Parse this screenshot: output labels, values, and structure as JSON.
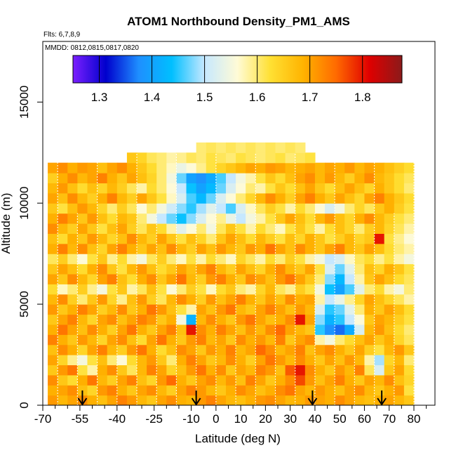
{
  "chart_data": {
    "type": "heatmap",
    "title": "ATOM1 Northbound Density_PM1_AMS",
    "subtitle_flights": "Flts: 6,7,8,9",
    "subtitle_dates": "MMDD: 0812,0815,0817,0820",
    "xlabel": "Latitude (deg N)",
    "ylabel": "Altitude (m)",
    "xlim": [
      -70,
      85
    ],
    "ylim": [
      0,
      18000
    ],
    "x_ticks": [
      -70,
      -55,
      -40,
      -25,
      -10,
      0,
      10,
      20,
      30,
      40,
      50,
      60,
      70,
      80
    ],
    "x_tick_labels": [
      "-70",
      "-55",
      "-40",
      "-25",
      "-10",
      "0",
      "10",
      "20",
      "30",
      "40",
      "50",
      "60",
      "70",
      "80"
    ],
    "x_minor_ticks": [
      -65,
      -60,
      -50,
      -45,
      -35,
      -30,
      -20,
      -15,
      -5,
      5,
      15,
      25,
      35,
      45,
      55,
      65,
      75,
      85
    ],
    "y_ticks": [
      0,
      5000,
      10000,
      15000
    ],
    "y_tick_labels": [
      "0",
      "5000",
      "10000",
      "15000"
    ],
    "colorbar": {
      "min": 1.25,
      "max": 1.875,
      "ticks": [
        1.3,
        1.4,
        1.5,
        1.6,
        1.7,
        1.8
      ],
      "tick_labels": [
        "1.3",
        "1.4",
        "1.5",
        "1.6",
        "1.7",
        "1.8"
      ],
      "colors": [
        "#7b1fff",
        "#0000cd",
        "#1e8fff",
        "#00bfff",
        "#c6e8ff",
        "#fffbd6",
        "#ffe033",
        "#ffb300",
        "#ff6a00",
        "#e00000",
        "#8b1a1a"
      ]
    },
    "layer_bottom_altitudes": [
      0,
      500,
      1000,
      1500,
      2000,
      2500,
      3000,
      3500,
      4000,
      4500,
      5000,
      5500,
      6000,
      6500,
      7000,
      7500,
      8000,
      8500,
      9000,
      9500,
      10000,
      10500,
      11000,
      11500,
      12000,
      12500
    ],
    "layer_thickness_m": 500,
    "column_latitudes": [
      -66,
      -62,
      -58,
      -54,
      -50,
      -46,
      -42,
      -38,
      -34,
      -30,
      -26,
      -22,
      -18,
      -14,
      -10,
      -6,
      -2,
      2,
      6,
      10,
      14,
      18,
      22,
      26,
      30,
      34,
      38,
      42,
      46,
      50,
      54,
      58,
      62,
      66,
      70,
      74,
      78
    ],
    "column_width_deg": 4,
    "density_grid": [
      [
        1.71,
        1.68,
        1.7,
        1.72,
        1.69,
        1.67,
        1.7,
        1.73,
        1.71,
        1.68,
        1.66,
        1.7,
        1.72,
        1.69,
        1.68,
        1.71,
        1.73,
        1.7,
        1.68,
        1.67,
        1.69,
        1.71,
        1.72,
        1.7,
        1.68,
        1.69,
        1.71,
        1.7,
        1.69,
        1.72,
        1.7,
        1.68,
        1.67,
        1.69,
        1.7,
        1.68,
        1.66
      ],
      [
        1.69,
        1.7,
        1.72,
        1.67,
        1.64,
        1.71,
        1.73,
        1.69,
        1.66,
        1.7,
        1.72,
        1.68,
        1.65,
        1.7,
        1.73,
        1.71,
        1.68,
        1.66,
        1.69,
        1.72,
        1.7,
        1.67,
        1.69,
        1.72,
        1.74,
        1.7,
        1.68,
        1.71,
        1.69,
        1.67,
        1.7,
        1.72,
        1.68,
        1.66,
        1.69,
        1.71,
        1.62
      ],
      [
        1.72,
        1.66,
        1.63,
        1.69,
        1.74,
        1.68,
        1.65,
        1.7,
        1.73,
        1.67,
        1.64,
        1.71,
        1.75,
        1.69,
        1.66,
        1.7,
        1.72,
        1.68,
        1.71,
        1.67,
        1.73,
        1.7,
        1.66,
        1.69,
        1.72,
        1.77,
        1.71,
        1.67,
        1.7,
        1.73,
        1.69,
        1.66,
        1.7,
        1.68,
        1.72,
        1.67,
        1.64
      ],
      [
        1.66,
        1.71,
        1.74,
        1.62,
        1.58,
        1.69,
        1.72,
        1.66,
        1.61,
        1.68,
        1.73,
        1.7,
        1.64,
        1.67,
        1.71,
        1.74,
        1.69,
        1.72,
        1.66,
        1.7,
        1.68,
        1.73,
        1.71,
        1.67,
        1.76,
        1.8,
        1.72,
        1.69,
        1.66,
        1.71,
        1.68,
        1.73,
        1.61,
        1.52,
        1.66,
        1.7,
        1.63
      ],
      [
        1.7,
        1.64,
        1.59,
        1.55,
        1.62,
        1.67,
        1.6,
        1.56,
        1.63,
        1.68,
        1.71,
        1.66,
        1.6,
        1.69,
        1.73,
        1.7,
        1.66,
        1.68,
        1.72,
        1.69,
        1.65,
        1.7,
        1.74,
        1.71,
        1.68,
        1.72,
        1.69,
        1.66,
        1.7,
        1.67,
        1.71,
        1.68,
        1.58,
        1.49,
        1.64,
        1.68,
        1.6
      ],
      [
        1.67,
        1.72,
        1.69,
        1.64,
        1.7,
        1.73,
        1.68,
        1.65,
        1.71,
        1.74,
        1.69,
        1.63,
        1.67,
        1.72,
        1.7,
        1.66,
        1.71,
        1.69,
        1.73,
        1.68,
        1.7,
        1.75,
        1.72,
        1.68,
        1.7,
        1.73,
        1.67,
        1.7,
        1.72,
        1.69,
        1.66,
        1.7,
        1.65,
        1.62,
        1.68,
        1.71,
        1.66
      ],
      [
        1.73,
        1.69,
        1.66,
        1.71,
        1.68,
        1.64,
        1.7,
        1.72,
        1.67,
        1.63,
        1.7,
        1.74,
        1.69,
        1.66,
        1.71,
        1.73,
        1.68,
        1.7,
        1.66,
        1.72,
        1.69,
        1.71,
        1.68,
        1.73,
        1.66,
        1.7,
        1.72,
        1.58,
        1.55,
        1.6,
        1.63,
        1.67,
        1.7,
        1.66,
        1.69,
        1.64,
        1.61
      ],
      [
        1.69,
        1.74,
        1.7,
        1.67,
        1.72,
        1.69,
        1.65,
        1.7,
        1.74,
        1.69,
        1.66,
        1.7,
        1.73,
        1.67,
        1.8,
        1.72,
        1.69,
        1.73,
        1.7,
        1.67,
        1.71,
        1.68,
        1.72,
        1.75,
        1.7,
        1.68,
        1.66,
        1.45,
        1.38,
        1.36,
        1.41,
        1.52,
        1.68,
        1.71,
        1.67,
        1.63,
        1.6
      ],
      [
        1.66,
        1.7,
        1.73,
        1.68,
        1.64,
        1.7,
        1.72,
        1.67,
        1.7,
        1.73,
        1.71,
        1.66,
        1.69,
        1.55,
        1.42,
        1.68,
        1.72,
        1.69,
        1.66,
        1.71,
        1.74,
        1.7,
        1.67,
        1.69,
        1.72,
        1.8,
        1.7,
        1.48,
        1.42,
        1.45,
        1.5,
        1.56,
        1.66,
        1.7,
        1.68,
        1.65,
        1.62
      ],
      [
        1.71,
        1.66,
        1.69,
        1.73,
        1.7,
        1.65,
        1.68,
        1.72,
        1.66,
        1.69,
        1.74,
        1.71,
        1.67,
        1.62,
        1.58,
        1.7,
        1.67,
        1.71,
        1.74,
        1.68,
        1.66,
        1.7,
        1.73,
        1.7,
        1.67,
        1.71,
        1.68,
        1.52,
        1.45,
        1.47,
        1.53,
        1.6,
        1.69,
        1.66,
        1.7,
        1.67,
        1.63
      ],
      [
        1.68,
        1.72,
        1.65,
        1.6,
        1.66,
        1.71,
        1.64,
        1.59,
        1.67,
        1.71,
        1.65,
        1.61,
        1.68,
        1.72,
        1.69,
        1.65,
        1.71,
        1.67,
        1.7,
        1.73,
        1.69,
        1.66,
        1.7,
        1.67,
        1.72,
        1.69,
        1.7,
        1.58,
        1.5,
        1.54,
        1.59,
        1.64,
        1.7,
        1.67,
        1.64,
        1.61,
        1.58
      ],
      [
        1.63,
        1.57,
        1.6,
        1.65,
        1.59,
        1.55,
        1.62,
        1.66,
        1.58,
        1.61,
        1.67,
        1.62,
        1.56,
        1.6,
        1.65,
        1.62,
        1.57,
        1.63,
        1.66,
        1.6,
        1.58,
        1.64,
        1.68,
        1.61,
        1.59,
        1.65,
        1.62,
        1.55,
        1.44,
        1.4,
        1.46,
        1.53,
        1.6,
        1.63,
        1.58,
        1.55,
        1.6
      ],
      [
        1.7,
        1.66,
        1.72,
        1.68,
        1.64,
        1.7,
        1.73,
        1.67,
        1.63,
        1.69,
        1.72,
        1.66,
        1.7,
        1.74,
        1.68,
        1.65,
        1.71,
        1.73,
        1.69,
        1.66,
        1.72,
        1.7,
        1.67,
        1.71,
        1.74,
        1.7,
        1.66,
        1.6,
        1.48,
        1.43,
        1.5,
        1.58,
        1.66,
        1.7,
        1.67,
        1.63,
        1.61
      ],
      [
        1.66,
        1.7,
        1.67,
        1.63,
        1.69,
        1.72,
        1.66,
        1.62,
        1.68,
        1.71,
        1.67,
        1.63,
        1.66,
        1.7,
        1.67,
        1.7,
        1.73,
        1.68,
        1.65,
        1.7,
        1.67,
        1.64,
        1.69,
        1.72,
        1.68,
        1.66,
        1.7,
        1.62,
        1.52,
        1.47,
        1.53,
        1.6,
        1.67,
        1.64,
        1.69,
        1.66,
        1.62
      ],
      [
        1.61,
        1.65,
        1.6,
        1.56,
        1.62,
        1.66,
        1.59,
        1.63,
        1.58,
        1.55,
        1.61,
        1.65,
        1.6,
        1.57,
        1.62,
        1.58,
        1.63,
        1.6,
        1.57,
        1.64,
        1.61,
        1.58,
        1.63,
        1.6,
        1.65,
        1.62,
        1.58,
        1.55,
        1.5,
        1.52,
        1.57,
        1.61,
        1.63,
        1.59,
        1.62,
        1.58,
        1.55
      ],
      [
        1.69,
        1.73,
        1.68,
        1.72,
        1.67,
        1.64,
        1.7,
        1.73,
        1.69,
        1.66,
        1.7,
        1.67,
        1.72,
        1.68,
        1.65,
        1.7,
        1.67,
        1.71,
        1.68,
        1.66,
        1.71,
        1.69,
        1.74,
        1.7,
        1.67,
        1.72,
        1.69,
        1.66,
        1.7,
        1.73,
        1.68,
        1.66,
        1.7,
        1.67,
        1.63,
        1.6,
        1.58
      ],
      [
        1.67,
        1.63,
        1.69,
        1.66,
        1.71,
        1.68,
        1.64,
        1.67,
        1.72,
        1.68,
        1.65,
        1.7,
        1.66,
        1.62,
        1.67,
        1.64,
        1.6,
        1.66,
        1.7,
        1.67,
        1.63,
        1.68,
        1.65,
        1.62,
        1.67,
        1.64,
        1.69,
        1.66,
        1.62,
        1.65,
        1.68,
        1.64,
        1.66,
        1.8,
        1.62,
        1.59,
        1.56
      ],
      [
        1.72,
        1.68,
        1.65,
        1.7,
        1.66,
        1.62,
        1.67,
        1.7,
        1.65,
        1.61,
        1.66,
        1.63,
        1.58,
        1.53,
        1.56,
        1.6,
        1.55,
        1.61,
        1.66,
        1.62,
        1.58,
        1.63,
        1.6,
        1.57,
        1.62,
        1.66,
        1.62,
        1.58,
        1.63,
        1.67,
        1.64,
        1.6,
        1.65,
        1.68,
        1.64,
        1.61,
        1.58
      ],
      [
        1.69,
        1.73,
        1.7,
        1.66,
        1.71,
        1.67,
        1.63,
        1.68,
        1.66,
        1.6,
        1.55,
        1.5,
        1.47,
        1.44,
        1.48,
        1.52,
        1.56,
        1.59,
        1.54,
        1.5,
        1.55,
        1.58,
        1.62,
        1.66,
        1.7,
        1.67,
        1.63,
        1.68,
        1.71,
        1.67,
        1.64,
        1.69,
        1.72,
        1.68,
        1.65,
        1.62,
        1.6
      ],
      [
        1.66,
        1.62,
        1.67,
        1.71,
        1.68,
        1.64,
        1.6,
        1.65,
        1.61,
        1.56,
        1.6,
        1.55,
        1.51,
        1.48,
        1.45,
        1.49,
        1.53,
        1.5,
        1.46,
        1.52,
        1.57,
        1.61,
        1.65,
        1.62,
        1.58,
        1.63,
        1.6,
        1.56,
        1.52,
        1.55,
        1.6,
        1.64,
        1.61,
        1.66,
        1.69,
        1.65,
        1.62
      ],
      [
        1.7,
        1.67,
        1.72,
        1.68,
        1.65,
        1.69,
        1.73,
        1.68,
        1.65,
        1.7,
        1.66,
        1.62,
        1.57,
        1.52,
        1.46,
        1.43,
        1.47,
        1.52,
        1.56,
        1.6,
        1.64,
        1.68,
        1.72,
        1.69,
        1.65,
        1.7,
        1.73,
        1.69,
        1.66,
        1.7,
        1.67,
        1.64,
        1.7,
        1.73,
        1.69,
        1.66,
        1.63
      ],
      [
        1.68,
        1.71,
        1.67,
        1.63,
        1.67,
        1.64,
        1.68,
        1.65,
        1.61,
        1.58,
        1.63,
        1.6,
        1.56,
        1.5,
        1.44,
        1.4,
        1.43,
        1.47,
        1.52,
        1.56,
        1.6,
        1.58,
        1.62,
        1.66,
        1.63,
        1.67,
        1.7,
        1.66,
        1.63,
        1.67,
        1.7,
        1.67,
        1.64,
        1.69,
        1.66,
        1.63,
        1.6
      ],
      [
        1.65,
        1.69,
        1.72,
        1.68,
        1.7,
        1.73,
        1.69,
        1.66,
        1.7,
        1.67,
        1.64,
        1.6,
        1.55,
        1.47,
        1.4,
        1.38,
        1.41,
        1.46,
        1.5,
        1.55,
        1.58,
        1.62,
        1.66,
        1.63,
        1.67,
        1.7,
        1.72,
        1.68,
        1.71,
        1.68,
        1.65,
        1.69,
        1.72,
        1.68,
        1.66,
        1.63,
        1.61
      ],
      [
        1.7,
        1.72,
        1.69,
        1.71,
        1.7,
        1.67,
        1.7,
        1.72,
        1.69,
        1.66,
        1.63,
        1.6,
        1.57,
        1.54,
        1.56,
        1.59,
        1.62,
        1.64,
        1.66,
        1.68,
        1.7,
        1.69,
        1.71,
        1.7,
        1.68,
        1.69,
        1.7,
        1.68,
        1.7,
        1.69,
        1.71,
        1.68,
        1.7,
        1.69,
        1.67,
        1.65,
        1.63
      ],
      [
        null,
        null,
        null,
        null,
        null,
        null,
        null,
        null,
        1.66,
        1.64,
        1.61,
        1.6,
        1.58,
        1.59,
        1.61,
        1.6,
        1.62,
        1.61,
        1.6,
        1.62,
        1.61,
        1.6,
        1.61,
        1.62,
        1.6,
        1.61,
        1.62,
        null,
        null,
        null,
        null,
        null,
        null,
        null,
        null,
        null,
        null
      ],
      [
        null,
        null,
        null,
        null,
        null,
        null,
        null,
        null,
        null,
        null,
        null,
        null,
        null,
        null,
        null,
        1.6,
        1.61,
        1.6,
        1.61,
        1.6,
        1.61,
        1.6,
        1.61,
        1.6,
        1.61,
        1.6,
        null,
        null,
        null,
        null,
        null,
        null,
        null,
        null,
        null,
        null,
        null
      ]
    ],
    "flight_track_color": "#ffffff",
    "arrow_latitudes": [
      -54,
      -8,
      39,
      67
    ]
  }
}
